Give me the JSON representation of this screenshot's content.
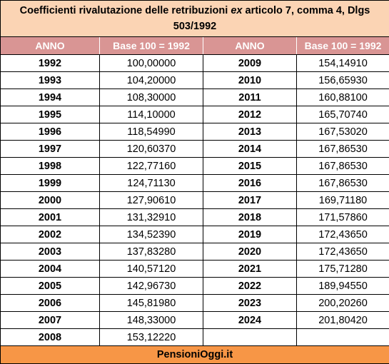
{
  "title": {
    "part1": "Coefficienti rivalutazione delle retribuzioni",
    "italic": "ex",
    "part2": "articolo 7, comma 4, Dlgs 503/1992"
  },
  "headers": [
    "ANNO",
    "Base 100 = 1992",
    "ANNO",
    "Base 100 = 1992"
  ],
  "rows": [
    {
      "y1": "1992",
      "v1": "100,00000",
      "y2": "2009",
      "v2": "154,14910"
    },
    {
      "y1": "1993",
      "v1": "104,20000",
      "y2": "2010",
      "v2": "156,65930"
    },
    {
      "y1": "1994",
      "v1": "108,30000",
      "y2": "2011",
      "v2": "160,88100"
    },
    {
      "y1": "1995",
      "v1": "114,10000",
      "y2": "2012",
      "v2": "165,70740"
    },
    {
      "y1": "1996",
      "v1": "118,54990",
      "y2": "2013",
      "v2": "167,53020"
    },
    {
      "y1": "1997",
      "v1": "120,60370",
      "y2": "2014",
      "v2": "167,86530"
    },
    {
      "y1": "1998",
      "v1": "122,77160",
      "y2": "2015",
      "v2": "167,86530"
    },
    {
      "y1": "1999",
      "v1": "124,71130",
      "y2": "2016",
      "v2": "167,86530"
    },
    {
      "y1": "2000",
      "v1": "127,90610",
      "y2": "2017",
      "v2": "169,71180"
    },
    {
      "y1": "2001",
      "v1": "131,32910",
      "y2": "2018",
      "v2": "171,57860"
    },
    {
      "y1": "2002",
      "v1": "134,52390",
      "y2": "2019",
      "v2": "172,43650"
    },
    {
      "y1": "2003",
      "v1": "137,83280",
      "y2": "2020",
      "v2": "172,43650"
    },
    {
      "y1": "2004",
      "v1": "140,57120",
      "y2": "2021",
      "v2": "175,71280"
    },
    {
      "y1": "2005",
      "v1": "142,96730",
      "y2": "2022",
      "v2": "189,94550"
    },
    {
      "y1": "2006",
      "v1": "145,81980",
      "y2": "2023",
      "v2": "200,20260"
    },
    {
      "y1": "2007",
      "v1": "148,33000",
      "y2": "2024",
      "v2": "201,80420"
    },
    {
      "y1": "2008",
      "v1": "153,12220",
      "y2": "",
      "v2": ""
    }
  ],
  "footer": "PensioniOggi.it",
  "colors": {
    "title_bg": "#fbd4b4",
    "header_bg": "#d99594",
    "footer_bg": "#f79646"
  }
}
